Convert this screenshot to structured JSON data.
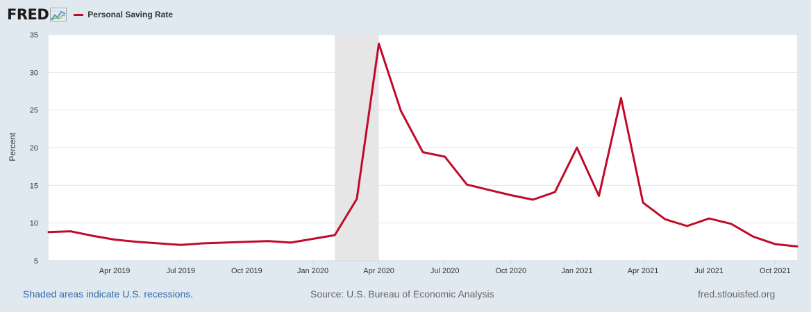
{
  "header": {
    "logo_text": "FRED",
    "logo_icon": "fred-graph-icon",
    "legend_label": "Personal Saving Rate"
  },
  "colors": {
    "series": "#c10a28",
    "background": "#e1e9f0",
    "plot": "#ffffff",
    "recession": "#e6e6e6"
  },
  "footer": {
    "note": "Shaded areas indicate U.S. recessions.",
    "source": "Source: U.S. Bureau of Economic Analysis",
    "site": "fred.stlouisfed.org"
  },
  "chart_data": {
    "type": "line",
    "ylabel": "Percent",
    "ylim": [
      5,
      35
    ],
    "yticks": [
      5,
      10,
      15,
      20,
      25,
      30,
      35
    ],
    "grid": true,
    "x_range": [
      "2019-01",
      "2021-11"
    ],
    "x_tick_labels": [
      "Apr 2019",
      "Jul 2019",
      "Oct 2019",
      "Jan 2020",
      "Apr 2020",
      "Jul 2020",
      "Oct 2020",
      "Jan 2021",
      "Apr 2021",
      "Jul 2021",
      "Oct 2021"
    ],
    "recession_shading": [
      "2020-02",
      "2020-04"
    ],
    "series": [
      {
        "name": "Personal Saving Rate",
        "x": [
          "2019-01",
          "2019-02",
          "2019-03",
          "2019-04",
          "2019-05",
          "2019-06",
          "2019-07",
          "2019-08",
          "2019-09",
          "2019-10",
          "2019-11",
          "2019-12",
          "2020-01",
          "2020-02",
          "2020-03",
          "2020-04",
          "2020-05",
          "2020-06",
          "2020-07",
          "2020-08",
          "2020-09",
          "2020-10",
          "2020-11",
          "2020-12",
          "2021-01",
          "2021-02",
          "2021-03",
          "2021-04",
          "2021-05",
          "2021-06",
          "2021-07",
          "2021-08",
          "2021-09",
          "2021-10",
          "2021-11"
        ],
        "values": [
          8.8,
          8.9,
          8.3,
          7.8,
          7.5,
          7.3,
          7.1,
          7.3,
          7.4,
          7.5,
          7.6,
          7.4,
          7.9,
          8.4,
          13.2,
          33.8,
          24.9,
          19.4,
          18.8,
          15.1,
          14.4,
          13.7,
          13.1,
          14.1,
          20.0,
          13.6,
          26.6,
          12.7,
          10.5,
          9.6,
          10.6,
          9.9,
          8.2,
          7.2,
          6.9
        ]
      }
    ]
  }
}
